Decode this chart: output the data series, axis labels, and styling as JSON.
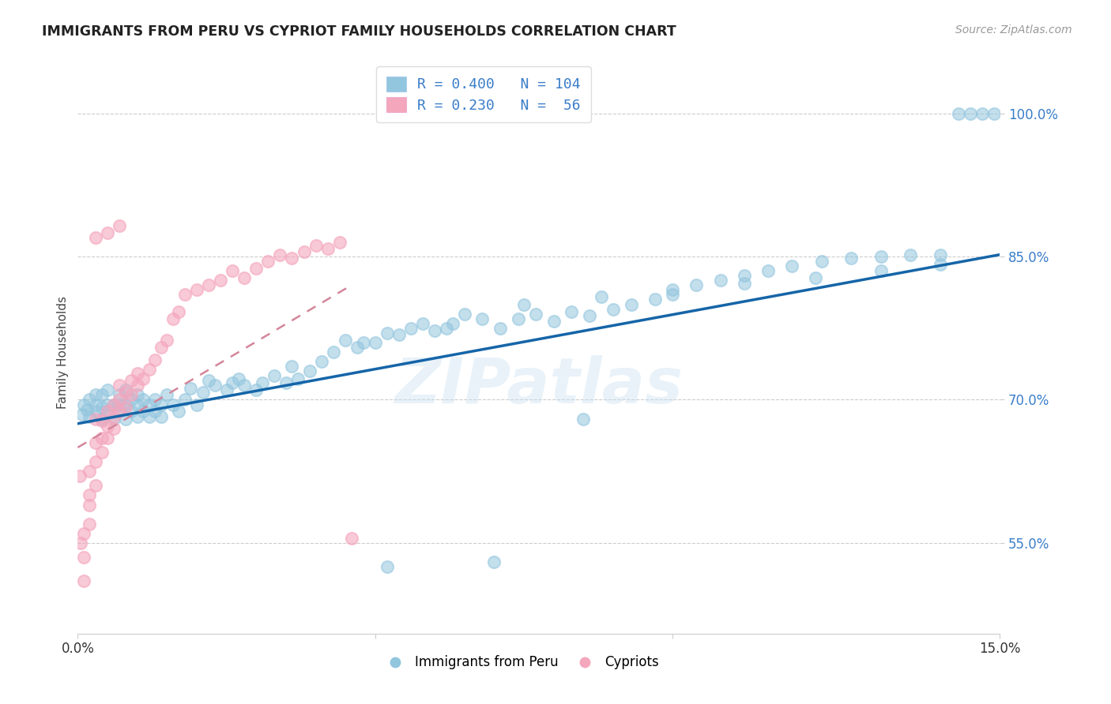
{
  "title": "IMMIGRANTS FROM PERU VS CYPRIOT FAMILY HOUSEHOLDS CORRELATION CHART",
  "source": "Source: ZipAtlas.com",
  "ylabel": "Family Households",
  "ytick_labels": [
    "55.0%",
    "70.0%",
    "85.0%",
    "100.0%"
  ],
  "ytick_values": [
    0.55,
    0.7,
    0.85,
    1.0
  ],
  "xlim": [
    0.0,
    0.155
  ],
  "ylim": [
    0.455,
    1.045
  ],
  "legend_blue_r": "0.400",
  "legend_blue_n": "104",
  "legend_pink_r": "0.230",
  "legend_pink_n": " 56",
  "legend_label_blue": "Immigrants from Peru",
  "legend_label_pink": "Cypriots",
  "blue_color": "#92c5de",
  "pink_color": "#f4a6bd",
  "trendline_blue_color": "#1565a8",
  "trendline_pink_color": "#d4869a",
  "watermark_text": "ZIPatlas",
  "blue_trend_x0": 0.0,
  "blue_trend_x1": 0.155,
  "blue_trend_y0": 0.675,
  "blue_trend_y1": 0.852,
  "pink_trend_x0": 0.0,
  "pink_trend_x1": 0.046,
  "pink_trend_y0": 0.65,
  "pink_trend_y1": 0.82,
  "blue_scatter_x": [
    0.0008,
    0.001,
    0.0015,
    0.002,
    0.002,
    0.003,
    0.003,
    0.003,
    0.004,
    0.004,
    0.004,
    0.005,
    0.005,
    0.005,
    0.006,
    0.006,
    0.007,
    0.007,
    0.007,
    0.008,
    0.008,
    0.008,
    0.009,
    0.009,
    0.01,
    0.01,
    0.01,
    0.011,
    0.011,
    0.012,
    0.012,
    0.013,
    0.013,
    0.014,
    0.014,
    0.015,
    0.016,
    0.017,
    0.018,
    0.019,
    0.02,
    0.021,
    0.022,
    0.023,
    0.025,
    0.026,
    0.027,
    0.028,
    0.03,
    0.031,
    0.033,
    0.035,
    0.037,
    0.039,
    0.041,
    0.043,
    0.045,
    0.047,
    0.05,
    0.052,
    0.054,
    0.056,
    0.058,
    0.06,
    0.063,
    0.065,
    0.068,
    0.071,
    0.074,
    0.077,
    0.08,
    0.083,
    0.086,
    0.09,
    0.093,
    0.097,
    0.1,
    0.104,
    0.108,
    0.112,
    0.116,
    0.12,
    0.125,
    0.13,
    0.135,
    0.14,
    0.145,
    0.148,
    0.15,
    0.152,
    0.154,
    0.036,
    0.048,
    0.062,
    0.075,
    0.088,
    0.1,
    0.112,
    0.124,
    0.135,
    0.145,
    0.052,
    0.07,
    0.085
  ],
  "blue_scatter_y": [
    0.685,
    0.695,
    0.69,
    0.682,
    0.7,
    0.688,
    0.695,
    0.705,
    0.68,
    0.692,
    0.705,
    0.688,
    0.695,
    0.71,
    0.68,
    0.695,
    0.688,
    0.695,
    0.705,
    0.68,
    0.695,
    0.71,
    0.688,
    0.7,
    0.682,
    0.695,
    0.705,
    0.688,
    0.7,
    0.682,
    0.695,
    0.688,
    0.7,
    0.682,
    0.695,
    0.705,
    0.695,
    0.688,
    0.7,
    0.712,
    0.695,
    0.708,
    0.72,
    0.715,
    0.71,
    0.718,
    0.722,
    0.715,
    0.71,
    0.718,
    0.725,
    0.718,
    0.722,
    0.73,
    0.74,
    0.75,
    0.762,
    0.755,
    0.76,
    0.77,
    0.768,
    0.775,
    0.78,
    0.772,
    0.78,
    0.79,
    0.785,
    0.775,
    0.785,
    0.79,
    0.782,
    0.792,
    0.788,
    0.795,
    0.8,
    0.805,
    0.81,
    0.82,
    0.825,
    0.83,
    0.835,
    0.84,
    0.845,
    0.848,
    0.85,
    0.852,
    0.852,
    1.0,
    1.0,
    1.0,
    1.0,
    0.735,
    0.76,
    0.775,
    0.8,
    0.808,
    0.815,
    0.822,
    0.828,
    0.835,
    0.842,
    0.525,
    0.53,
    0.68
  ],
  "pink_scatter_x": [
    0.0003,
    0.0005,
    0.001,
    0.001,
    0.001,
    0.002,
    0.002,
    0.002,
    0.002,
    0.003,
    0.003,
    0.003,
    0.003,
    0.004,
    0.004,
    0.004,
    0.005,
    0.005,
    0.005,
    0.006,
    0.006,
    0.006,
    0.007,
    0.007,
    0.007,
    0.008,
    0.008,
    0.009,
    0.009,
    0.01,
    0.01,
    0.011,
    0.012,
    0.013,
    0.014,
    0.015,
    0.016,
    0.017,
    0.018,
    0.02,
    0.022,
    0.024,
    0.026,
    0.028,
    0.03,
    0.032,
    0.034,
    0.036,
    0.038,
    0.04,
    0.042,
    0.044,
    0.046,
    0.003,
    0.005,
    0.007
  ],
  "pink_scatter_y": [
    0.62,
    0.55,
    0.51,
    0.535,
    0.56,
    0.59,
    0.57,
    0.6,
    0.625,
    0.61,
    0.635,
    0.655,
    0.68,
    0.645,
    0.66,
    0.678,
    0.66,
    0.672,
    0.688,
    0.67,
    0.682,
    0.695,
    0.688,
    0.7,
    0.715,
    0.692,
    0.708,
    0.705,
    0.72,
    0.715,
    0.728,
    0.722,
    0.732,
    0.742,
    0.755,
    0.762,
    0.785,
    0.792,
    0.81,
    0.815,
    0.82,
    0.825,
    0.835,
    0.828,
    0.838,
    0.845,
    0.852,
    0.848,
    0.855,
    0.862,
    0.858,
    0.865,
    0.555,
    0.87,
    0.875,
    0.882
  ]
}
